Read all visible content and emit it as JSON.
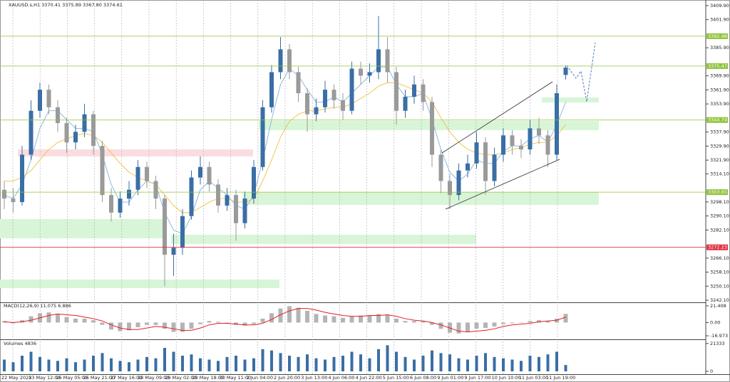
{
  "chart_data": [
    {
      "type": "candlestick",
      "title": "XAUUSD.s,H1  3370.41 3375.89 3367.80 3374.61",
      "up_color": "#3a6ea5",
      "down_color": "#9a9a9a",
      "open": [
        3305,
        3300,
        3298,
        3325,
        3350,
        3362,
        3352,
        3343,
        3332,
        3338,
        3348,
        3330,
        3302,
        3292,
        3300,
        3305,
        3318,
        3310,
        3300,
        3268,
        3272,
        3290,
        3312,
        3318,
        3308,
        3296,
        3302,
        3286,
        3300,
        3318,
        3352,
        3372,
        3385,
        3372,
        3360,
        3348,
        3352,
        3362,
        3356,
        3350,
        3374,
        3370,
        3372,
        3385,
        3372,
        3350,
        3358,
        3365,
        3355,
        3325,
        3310,
        3302,
        3316,
        3320,
        3332,
        3310,
        3325,
        3336,
        3330,
        3328,
        3340,
        3336,
        3325,
        3370.41
      ],
      "high": [
        3310,
        3306,
        3330,
        3356,
        3366,
        3365,
        3356,
        3346,
        3342,
        3354,
        3350,
        3333,
        3306,
        3304,
        3310,
        3322,
        3321,
        3313,
        3302,
        3280,
        3294,
        3316,
        3324,
        3321,
        3311,
        3306,
        3305,
        3304,
        3322,
        3356,
        3376,
        3392,
        3388,
        3375,
        3363,
        3357,
        3367,
        3365,
        3360,
        3378,
        3378,
        3377,
        3404,
        3392,
        3375,
        3362,
        3370,
        3368,
        3358,
        3328,
        3314,
        3320,
        3325,
        3338,
        3335,
        3329,
        3340,
        3339,
        3334,
        3345,
        3346,
        3339,
        3365,
        3375.89
      ],
      "low": [
        3294,
        3292,
        3296,
        3322,
        3346,
        3348,
        3338,
        3326,
        3328,
        3335,
        3325,
        3298,
        3287,
        3289,
        3296,
        3302,
        3306,
        3294,
        3250,
        3256,
        3268,
        3288,
        3308,
        3304,
        3292,
        3293,
        3276,
        3283,
        3297,
        3316,
        3349,
        3368,
        3368,
        3355,
        3338,
        3344,
        3349,
        3351,
        3345,
        3348,
        3365,
        3366,
        3368,
        3366,
        3342,
        3346,
        3354,
        3350,
        3318,
        3303,
        3294,
        3299,
        3312,
        3317,
        3302,
        3307,
        3321,
        3325,
        3323,
        3325,
        3331,
        3318,
        3322,
        3367.8
      ],
      "close": [
        3300,
        3298,
        3325,
        3350,
        3362,
        3352,
        3343,
        3332,
        3338,
        3348,
        3330,
        3302,
        3292,
        3300,
        3305,
        3318,
        3310,
        3300,
        3268,
        3272,
        3290,
        3312,
        3318,
        3308,
        3296,
        3302,
        3286,
        3300,
        3318,
        3352,
        3372,
        3385,
        3372,
        3360,
        3348,
        3352,
        3362,
        3356,
        3350,
        3374,
        3370,
        3372,
        3385,
        3372,
        3350,
        3358,
        3365,
        3355,
        3325,
        3310,
        3302,
        3316,
        3320,
        3332,
        3310,
        3325,
        3336,
        3330,
        3328,
        3340,
        3336,
        3325,
        3360,
        3374.61
      ],
      "ma_lines": [
        {
          "color": "#7fb2dd",
          "values": [
            3302,
            3300,
            3308,
            3322,
            3340,
            3350,
            3350,
            3345,
            3340,
            3340,
            3338,
            3325,
            3308,
            3298,
            3298,
            3305,
            3310,
            3308,
            3292,
            3282,
            3280,
            3290,
            3305,
            3310,
            3306,
            3302,
            3296,
            3294,
            3302,
            3322,
            3345,
            3365,
            3374,
            3370,
            3362,
            3355,
            3355,
            3358,
            3355,
            3360,
            3365,
            3370,
            3375,
            3375,
            3365,
            3358,
            3358,
            3360,
            3345,
            3328,
            3315,
            3310,
            3314,
            3322,
            3320,
            3320,
            3327,
            3330,
            3330,
            3334,
            3336,
            3332,
            3342,
            3355
          ]
        },
        {
          "color": "#f0c040",
          "values": [
            3310,
            3310,
            3312,
            3316,
            3322,
            3328,
            3332,
            3334,
            3336,
            3337,
            3336,
            3332,
            3326,
            3320,
            3315,
            3312,
            3310,
            3308,
            3302,
            3296,
            3292,
            3292,
            3295,
            3298,
            3300,
            3300,
            3298,
            3298,
            3300,
            3310,
            3322,
            3335,
            3344,
            3348,
            3350,
            3350,
            3351,
            3352,
            3352,
            3354,
            3357,
            3360,
            3364,
            3366,
            3366,
            3364,
            3362,
            3360,
            3355,
            3346,
            3338,
            3332,
            3328,
            3326,
            3325,
            3325,
            3326,
            3328,
            3329,
            3331,
            3332,
            3332,
            3336,
            3342
          ]
        }
      ],
      "levels": [
        {
          "value": 3392.48,
          "color": "#8fc33a"
        },
        {
          "value": 3375.47,
          "color": "#8fc33a"
        },
        {
          "value": 3344.74,
          "color": "#8fc33a"
        },
        {
          "value": 3303.65,
          "color": "#8fc33a"
        },
        {
          "value": 3272.23,
          "color": "#e03040"
        }
      ],
      "ylim": [
        3240.9,
        3413.1
      ],
      "yticks": [
        {
          "value": 3409.9,
          "label": "3409.90"
        },
        {
          "value": 3401.9,
          "label": "3401.90"
        },
        {
          "value": 3385.9,
          "label": "3385.90"
        },
        {
          "value": 3369.9,
          "label": "3369.90"
        },
        {
          "value": 3361.9,
          "label": "3361.90"
        },
        {
          "value": 3353.9,
          "label": "3353.90"
        },
        {
          "value": 3337.9,
          "label": "3337.90"
        },
        {
          "value": 3329.9,
          "label": "3329.90"
        },
        {
          "value": 3321.9,
          "label": "3321.90"
        },
        {
          "value": 3314.1,
          "label": "3314.10"
        },
        {
          "value": 3298.1,
          "label": "3298.10"
        },
        {
          "value": 3290.1,
          "label": "3290.10"
        },
        {
          "value": 3282.1,
          "label": "3282.10"
        },
        {
          "value": 3266.1,
          "label": "3266.10"
        },
        {
          "value": 3258.1,
          "label": "3258.10"
        },
        {
          "value": 3250.1,
          "label": "3250.10"
        },
        {
          "value": 3242.1,
          "label": "3242.10"
        }
      ],
      "time_labels": [
        "22 May 2025",
        "23 May 12:00",
        "26 May 05:00",
        "26 May 21:00",
        "27 May 16:00",
        "28 May 09:00",
        "29 May 02:00",
        "29 May 18:00",
        "30 May 11:00",
        "2 Jun 04:00",
        "2 Jun 20:00",
        "3 Jun 13:00",
        "4 Jun 06:00",
        "4 Jun 22:00",
        "5 Jun 15:00",
        "6 Jun 08:00",
        "9 Jun 01:00",
        "9 Jun 17:00",
        "10 Jun 10:00",
        "11 Jun 03:00",
        "11 Jun 19:00"
      ]
    },
    {
      "type": "macd",
      "title": "MACD(12,26,9) 11.075 6.886",
      "color": "#b4b4b4",
      "values": [
        2,
        -1,
        3,
        8,
        12,
        13,
        11,
        7,
        5,
        5,
        3,
        -3,
        -9,
        -11,
        -10,
        -6,
        -3,
        -3,
        -8,
        -12,
        -12,
        -8,
        -2,
        2,
        1,
        -1,
        -3,
        -4,
        -2,
        5,
        12,
        18,
        21,
        19,
        15,
        11,
        9,
        8,
        6,
        8,
        9,
        9,
        11,
        10,
        5,
        2,
        2,
        2,
        -3,
        -8,
        -13,
        -14,
        -12,
        -8,
        -7,
        -5,
        -2,
        -1,
        0,
        2,
        3,
        2,
        5,
        11.075
      ],
      "signal": {
        "color": "#e02020",
        "values": [
          1,
          0,
          1,
          3,
          6,
          9,
          11,
          10,
          9,
          7,
          5,
          2,
          -3,
          -7,
          -9,
          -9,
          -7,
          -5,
          -6,
          -8,
          -10,
          -10,
          -7,
          -3,
          -1,
          -1,
          -2,
          -3,
          -3,
          -1,
          4,
          10,
          15,
          18,
          18,
          16,
          13,
          11,
          9,
          8,
          8,
          9,
          9,
          10,
          8,
          5,
          3,
          2,
          0,
          -3,
          -7,
          -11,
          -12,
          -11,
          -10,
          -8,
          -5,
          -3,
          -2,
          -1,
          1,
          2,
          3,
          6.886
        ]
      },
      "ylim": [
        -21.5,
        25
      ],
      "yticks": [
        21.408,
        {
          "value": 0,
          "label": "0.00"
        },
        -16.973
      ]
    },
    {
      "type": "bar",
      "title": "Volumes 4836",
      "color": "#3a6ea5",
      "values": [
        9000,
        7000,
        12000,
        15000,
        11000,
        9000,
        8000,
        10000,
        7000,
        9000,
        12000,
        14000,
        10000,
        8000,
        7000,
        9000,
        11000,
        10000,
        18000,
        15000,
        12000,
        13000,
        10000,
        9000,
        8000,
        11000,
        12000,
        9000,
        10000,
        17000,
        16000,
        14000,
        12000,
        11000,
        13000,
        10000,
        9000,
        11000,
        12000,
        15000,
        13000,
        10000,
        17000,
        20000,
        15000,
        11000,
        9000,
        12000,
        16000,
        14000,
        13000,
        10000,
        9000,
        12000,
        14000,
        11000,
        10000,
        9000,
        8000,
        12000,
        11000,
        13000,
        15000,
        4836
      ],
      "ylim": [
        0,
        24000
      ],
      "yticks": [
        21333,
        0
      ]
    }
  ]
}
